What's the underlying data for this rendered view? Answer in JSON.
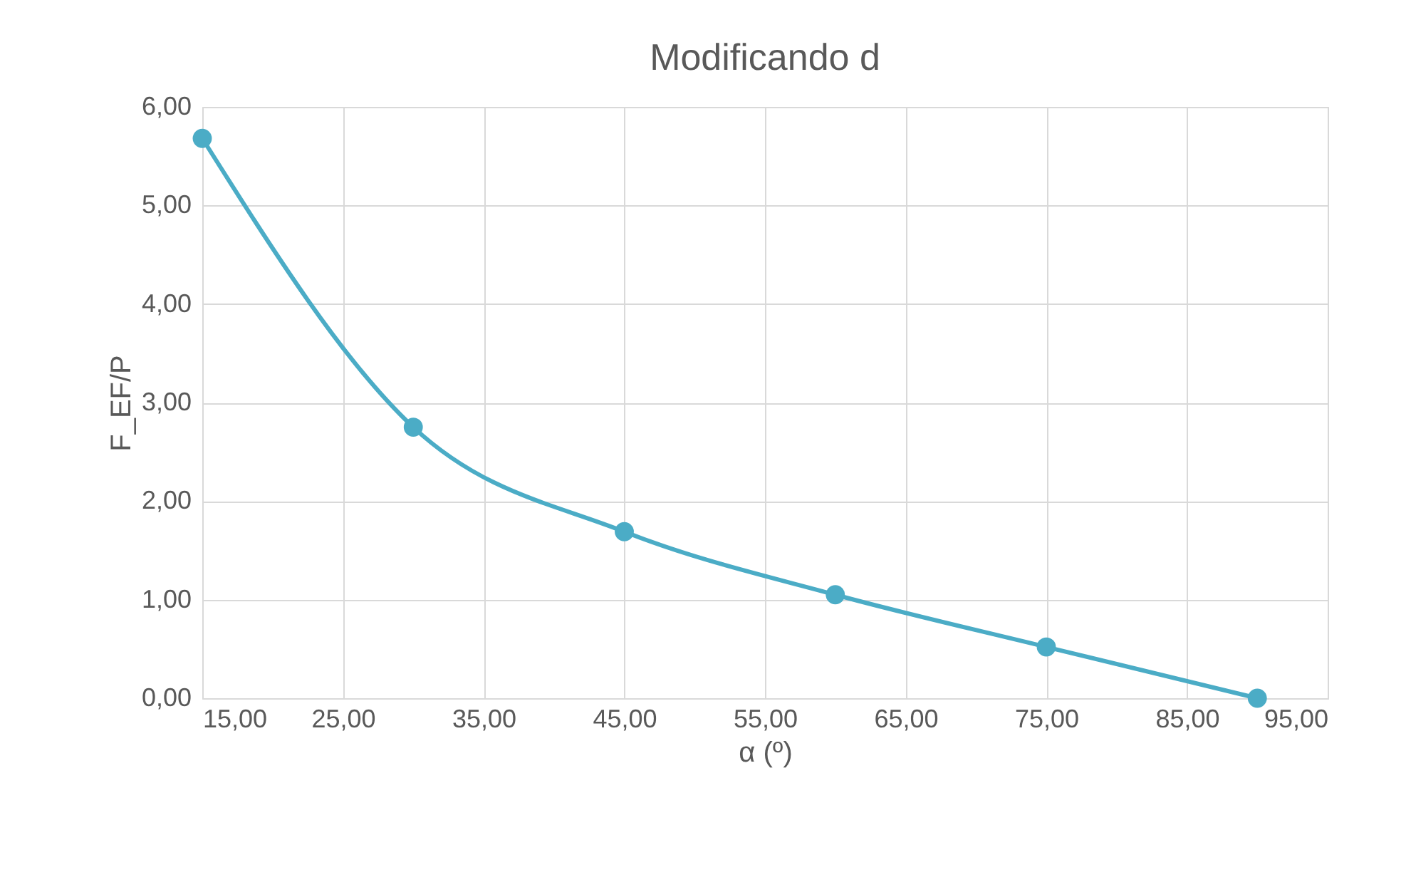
{
  "chart_data": {
    "type": "line",
    "title": "Modificando d",
    "xlabel": "α (º)",
    "ylabel": "F_EF/P",
    "x": [
      15,
      30,
      45,
      60,
      75,
      90
    ],
    "series": [
      {
        "color": "#4bacc6",
        "values": [
          5.68,
          2.75,
          1.69,
          1.05,
          0.52,
          0.0
        ]
      }
    ],
    "xlim": [
      15,
      95
    ],
    "ylim": [
      0,
      6
    ],
    "xticks": [
      {
        "value": 15,
        "label": "15,00"
      },
      {
        "value": 25,
        "label": "25,00"
      },
      {
        "value": 35,
        "label": "35,00"
      },
      {
        "value": 45,
        "label": "45,00"
      },
      {
        "value": 55,
        "label": "55,00"
      },
      {
        "value": 65,
        "label": "65,00"
      },
      {
        "value": 75,
        "label": "75,00"
      },
      {
        "value": 85,
        "label": "85,00"
      },
      {
        "value": 95,
        "label": "95,00"
      }
    ],
    "yticks": [
      {
        "value": 0,
        "label": "0,00"
      },
      {
        "value": 1,
        "label": "1,00"
      },
      {
        "value": 2,
        "label": "2,00"
      },
      {
        "value": 3,
        "label": "3,00"
      },
      {
        "value": 4,
        "label": "4,00"
      },
      {
        "value": 5,
        "label": "5,00"
      },
      {
        "value": 6,
        "label": "6,00"
      }
    ],
    "grid": true,
    "marker": "circle",
    "line_style": "solid"
  }
}
